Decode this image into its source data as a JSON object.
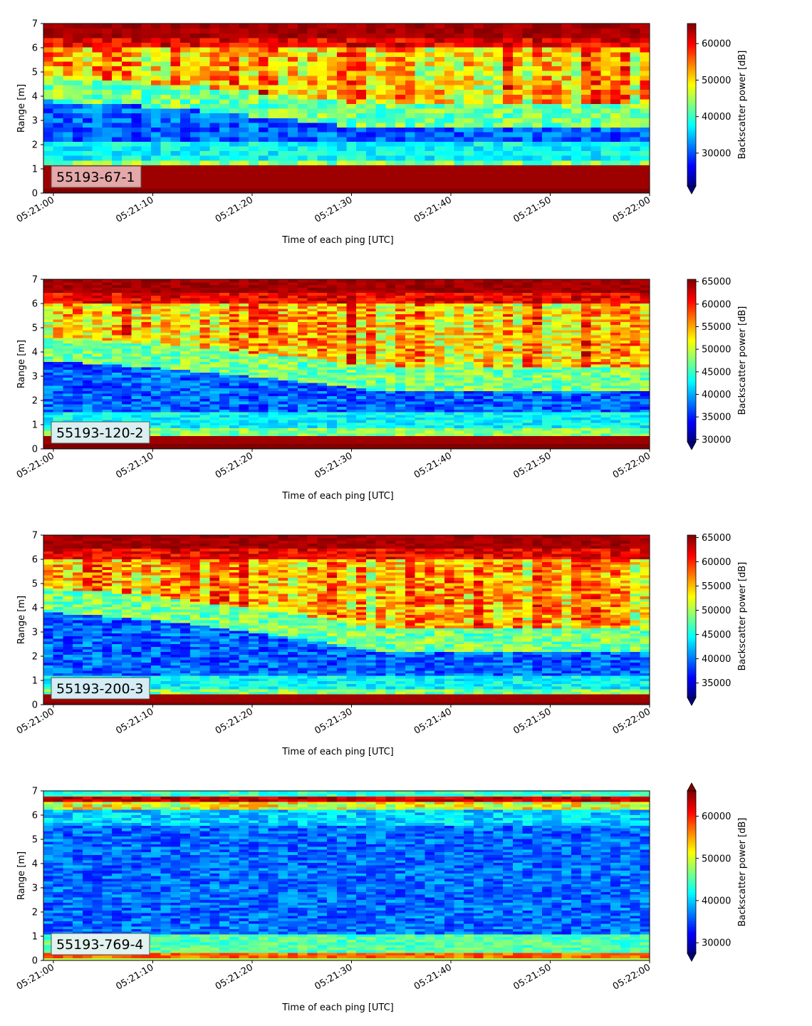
{
  "chart_data": [
    {
      "type": "heatmap",
      "panel_label": "55193-67-1",
      "xlabel": "Time of each ping [UTC]",
      "ylabel": "Range [m]",
      "x_ticks": [
        "05:21:00",
        "05:21:10",
        "05:21:20",
        "05:21:30",
        "05:21:40",
        "05:21:50",
        "05:22:00"
      ],
      "xlim": [
        "05:20:59",
        "05:22:00"
      ],
      "y_ticks": [
        0,
        1,
        2,
        3,
        4,
        5,
        6,
        7
      ],
      "ylim": [
        0,
        7
      ],
      "colorbar_label": "Backscatter power [dB]",
      "colorbar_range": [
        21000,
        65500
      ],
      "colorbar_ticks": [
        30000,
        40000,
        50000,
        60000
      ],
      "colorbar_extend": "min",
      "colormap": "jet",
      "label_box_color": "#e4a8a8",
      "profile": {
        "surface_top": 1.2,
        "surface_base": 0.2,
        "dark_band": [
          2.1,
          3.8
        ],
        "rise_time_s": 32,
        "rise_to": 2.7
      }
    },
    {
      "type": "heatmap",
      "panel_label": "55193-120-2",
      "xlabel": "Time of each ping [UTC]",
      "ylabel": "Range [m]",
      "x_ticks": [
        "05:21:00",
        "05:21:10",
        "05:21:20",
        "05:21:30",
        "05:21:40",
        "05:21:50",
        "05:22:00"
      ],
      "xlim": [
        "05:20:59",
        "05:22:00"
      ],
      "y_ticks": [
        0,
        1,
        2,
        3,
        4,
        5,
        6,
        7
      ],
      "ylim": [
        0,
        7
      ],
      "colorbar_label": "Backscatter power [dB]",
      "colorbar_range": [
        29500,
        65500
      ],
      "colorbar_ticks": [
        30000,
        35000,
        40000,
        45000,
        50000,
        55000,
        60000,
        65000
      ],
      "colorbar_extend": "min",
      "colormap": "jet",
      "label_box_color": "#dbeef0",
      "profile": {
        "surface_top": 0.6,
        "surface_base": 0.2,
        "dark_band": [
          1.5,
          3.6
        ],
        "rise_time_s": 34,
        "rise_to": 2.4
      }
    },
    {
      "type": "heatmap",
      "panel_label": "55193-200-3",
      "xlabel": "Time of each ping [UTC]",
      "ylabel": "Range [m]",
      "x_ticks": [
        "05:21:00",
        "05:21:10",
        "05:21:20",
        "05:21:30",
        "05:21:40",
        "05:21:50",
        "05:22:00"
      ],
      "xlim": [
        "05:20:59",
        "05:22:00"
      ],
      "y_ticks": [
        0,
        1,
        2,
        3,
        4,
        5,
        6,
        7
      ],
      "ylim": [
        0,
        7
      ],
      "colorbar_label": "Backscatter power [dB]",
      "colorbar_range": [
        32000,
        65500
      ],
      "colorbar_ticks": [
        35000,
        40000,
        45000,
        50000,
        55000,
        60000,
        65000
      ],
      "colorbar_extend": "min",
      "colormap": "jet",
      "label_box_color": "#d4ecf4",
      "profile": {
        "surface_top": 0.45,
        "surface_base": 0.15,
        "dark_band": [
          1.2,
          3.8
        ],
        "rise_time_s": 34,
        "rise_to": 2.2
      }
    },
    {
      "type": "heatmap",
      "panel_label": "55193-769-4",
      "xlabel": "Time of each ping [UTC]",
      "ylabel": "Range [m]",
      "x_ticks": [
        "05:21:00",
        "05:21:10",
        "05:21:20",
        "05:21:30",
        "05:21:40",
        "05:21:50",
        "05:22:00"
      ],
      "xlim": [
        "05:20:59",
        "05:22:00"
      ],
      "y_ticks": [
        0,
        1,
        2,
        3,
        4,
        5,
        6,
        7
      ],
      "ylim": [
        0,
        7
      ],
      "colorbar_label": "Backscatter power [dB]",
      "colorbar_range": [
        27500,
        66000
      ],
      "colorbar_ticks": [
        30000,
        40000,
        50000,
        60000
      ],
      "colorbar_extend": "both",
      "colormap": "jet",
      "label_box_color": "#e2f2ee",
      "profile": {
        "surface_top": 0.35,
        "surface_base": 0.15,
        "dark_band": [
          1.0,
          6.0
        ],
        "rise_time_s": 60,
        "rise_to": 1.0
      }
    }
  ]
}
